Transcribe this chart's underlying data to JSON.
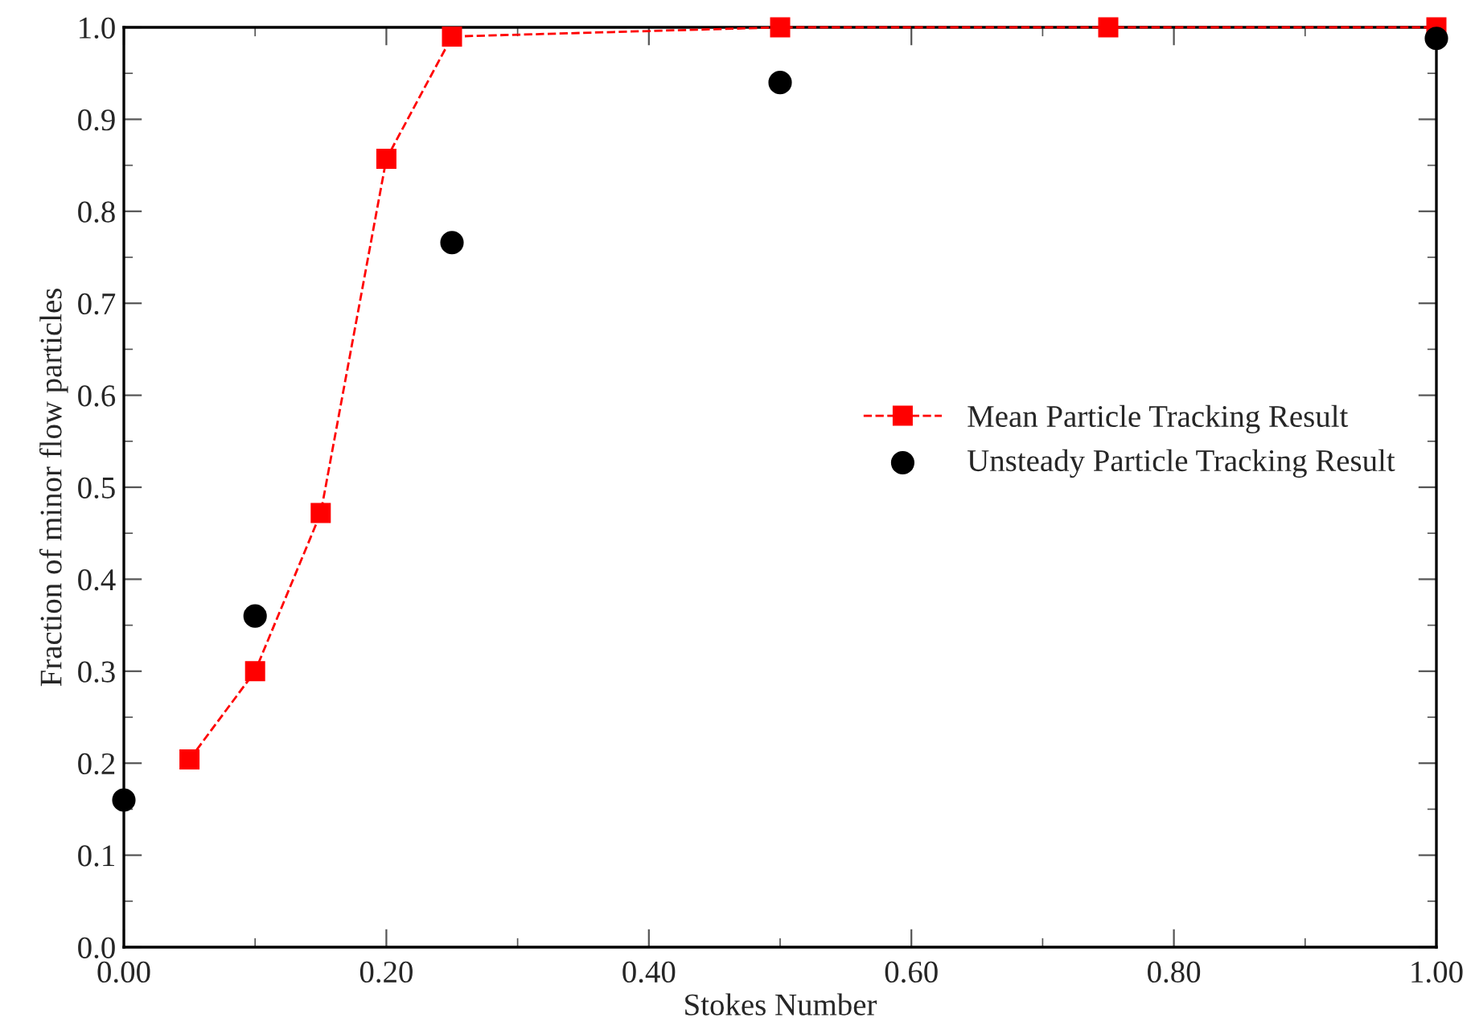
{
  "chart_data": {
    "type": "line",
    "xlabel": "Stokes Number",
    "ylabel": "Fraction of minor flow particles",
    "series": [
      {
        "name": "Mean Particle Tracking Result",
        "color": "#ff0000",
        "marker": "square",
        "line_style": "dashed",
        "x": [
          0.05,
          0.1,
          0.15,
          0.2,
          0.25,
          0.5,
          0.75,
          1.0
        ],
        "values": [
          0.204,
          0.3,
          0.472,
          0.857,
          0.99,
          1.0,
          1.0,
          1.0
        ]
      },
      {
        "name": "Unsteady Particle Tracking Result",
        "color": "#000000",
        "type": "scatter",
        "marker": "circle",
        "x": [
          0.0,
          0.1,
          0.25,
          0.5,
          1.0
        ],
        "values": [
          0.16,
          0.36,
          0.766,
          0.94,
          0.988
        ]
      }
    ],
    "xlim": [
      0,
      1
    ],
    "ylim": [
      0,
      1
    ],
    "xticks": [
      {
        "value": 0,
        "label": "0.00"
      },
      {
        "value": 0.2,
        "label": "0.20"
      },
      {
        "value": 0.4,
        "label": "0.40"
      },
      {
        "value": 0.6,
        "label": "0.60"
      },
      {
        "value": 0.8,
        "label": "0.80"
      },
      {
        "value": 1.0,
        "label": "1.00"
      }
    ],
    "yticks": [
      {
        "value": 0,
        "label": "0.0"
      },
      0.1,
      0.2,
      0.3,
      0.4,
      0.5,
      0.6,
      0.7,
      0.8,
      0.9,
      {
        "value": 1.0,
        "label": "1.0"
      }
    ],
    "grid": false,
    "legend": "right"
  }
}
